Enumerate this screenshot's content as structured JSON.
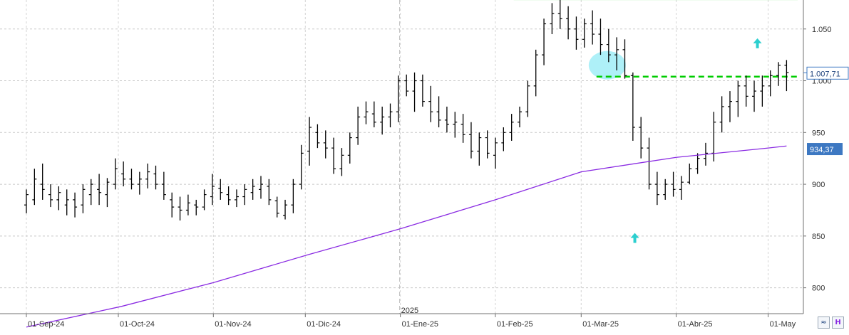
{
  "chart_data": {
    "type": "ohlc",
    "year_marker": "2025",
    "x_labels": [
      "01-Sep-24",
      "01-Oct-24",
      "01-Nov-24",
      "01-Dic-24",
      "01-Ene-25",
      "01-Feb-25",
      "01-Mar-25",
      "01-Abr-25",
      "01-May"
    ],
    "y_ticks": [
      "800",
      "850",
      "900",
      "950",
      "1.000",
      "1.050"
    ],
    "ylim": [
      775,
      1078
    ],
    "grid": true,
    "price_label": "1.007,71",
    "ma_label": "934,37",
    "resistance_level": 1082,
    "support_level": 1004,
    "colors": {
      "bars": "#000000",
      "moving_average": "#8a2be2",
      "ma_label_bg": "#3d78c2",
      "price_label_border": "#3d78c2",
      "support_line": "#00cc00",
      "resistance_zone": "#a8eea8",
      "highlight_circle": "#aef0f8",
      "arrows": "#2ccfcf"
    },
    "series": [
      {
        "type": "ohlc",
        "values": [
          [
            880,
            895,
            872,
            890
          ],
          [
            885,
            915,
            880,
            905
          ],
          [
            900,
            920,
            885,
            895
          ],
          [
            890,
            900,
            878,
            885
          ],
          [
            885,
            898,
            875,
            892
          ],
          [
            880,
            895,
            870,
            885
          ],
          [
            885,
            892,
            868,
            878
          ],
          [
            880,
            900,
            872,
            895
          ],
          [
            890,
            905,
            880,
            900
          ],
          [
            895,
            910,
            880,
            892
          ],
          [
            890,
            906,
            878,
            902
          ],
          [
            900,
            925,
            895,
            915
          ],
          [
            910,
            922,
            898,
            905
          ],
          [
            905,
            915,
            895,
            900
          ],
          [
            900,
            912,
            890,
            905
          ],
          [
            905,
            920,
            896,
            912
          ],
          [
            910,
            918,
            895,
            900
          ],
          [
            900,
            912,
            885,
            890
          ],
          [
            885,
            892,
            868,
            878
          ],
          [
            878,
            888,
            865,
            875
          ],
          [
            875,
            890,
            870,
            882
          ],
          [
            880,
            885,
            870,
            878
          ],
          [
            878,
            895,
            875,
            890
          ],
          [
            888,
            910,
            880,
            898
          ],
          [
            896,
            905,
            885,
            892
          ],
          [
            890,
            898,
            880,
            885
          ],
          [
            885,
            895,
            878,
            888
          ],
          [
            888,
            900,
            880,
            895
          ],
          [
            892,
            905,
            885,
            898
          ],
          [
            895,
            908,
            886,
            900
          ],
          [
            898,
            905,
            880,
            885
          ],
          [
            884,
            888,
            868,
            872
          ],
          [
            870,
            885,
            866,
            880
          ],
          [
            880,
            905,
            872,
            900
          ],
          [
            900,
            938,
            895,
            930
          ],
          [
            932,
            965,
            918,
            955
          ],
          [
            950,
            958,
            935,
            940
          ],
          [
            940,
            952,
            925,
            935
          ],
          [
            935,
            945,
            910,
            915
          ],
          [
            915,
            935,
            908,
            928
          ],
          [
            928,
            950,
            920,
            945
          ],
          [
            945,
            975,
            938,
            965
          ],
          [
            965,
            980,
            958,
            970
          ],
          [
            968,
            980,
            955,
            960
          ],
          [
            960,
            975,
            948,
            965
          ],
          [
            965,
            978,
            955,
            970
          ],
          [
            970,
            1005,
            960,
            1000
          ],
          [
            1000,
            1006,
            985,
            990
          ],
          [
            990,
            1008,
            970,
            1000
          ],
          [
            1000,
            1006,
            975,
            980
          ],
          [
            980,
            995,
            960,
            970
          ],
          [
            970,
            985,
            955,
            962
          ],
          [
            962,
            975,
            950,
            958
          ],
          [
            958,
            970,
            945,
            960
          ],
          [
            958,
            968,
            940,
            948
          ],
          [
            948,
            960,
            925,
            932
          ],
          [
            932,
            950,
            918,
            945
          ],
          [
            945,
            952,
            925,
            930
          ],
          [
            928,
            945,
            915,
            940
          ],
          [
            940,
            955,
            932,
            950
          ],
          [
            950,
            968,
            942,
            960
          ],
          [
            960,
            975,
            955,
            970
          ],
          [
            970,
            1000,
            965,
            995
          ],
          [
            995,
            1030,
            985,
            1025
          ],
          [
            1025,
            1060,
            1015,
            1055
          ],
          [
            1055,
            1075,
            1045,
            1065
          ],
          [
            1065,
            1078,
            1050,
            1060
          ],
          [
            1060,
            1072,
            1040,
            1050
          ],
          [
            1050,
            1062,
            1030,
            1040
          ],
          [
            1040,
            1060,
            1032,
            1055
          ],
          [
            1055,
            1068,
            1035,
            1045
          ],
          [
            1045,
            1060,
            1025,
            1035
          ],
          [
            1035,
            1050,
            1018,
            1025
          ],
          [
            1025,
            1042,
            1010,
            1030
          ],
          [
            1030,
            1040,
            1002,
            1005
          ],
          [
            1005,
            1008,
            942,
            955
          ],
          [
            955,
            965,
            925,
            935
          ],
          [
            935,
            945,
            895,
            900
          ],
          [
            900,
            912,
            880,
            890
          ],
          [
            890,
            905,
            885,
            900
          ],
          [
            900,
            912,
            888,
            895
          ],
          [
            895,
            908,
            885,
            902
          ],
          [
            902,
            920,
            900,
            915
          ],
          [
            915,
            930,
            910,
            925
          ],
          [
            925,
            940,
            918,
            930
          ],
          [
            930,
            970,
            922,
            960
          ],
          [
            960,
            985,
            950,
            975
          ],
          [
            975,
            990,
            960,
            980
          ],
          [
            980,
            1000,
            965,
            995
          ],
          [
            995,
            1005,
            975,
            985
          ],
          [
            985,
            1000,
            970,
            990
          ],
          [
            990,
            1005,
            975,
            995
          ],
          [
            995,
            1010,
            985,
            1005
          ],
          [
            1005,
            1018,
            995,
            1015
          ],
          [
            1015,
            1020,
            990,
            1008
          ]
        ]
      },
      {
        "name": "",
        "type": "line",
        "x_days": [
          0,
          31,
          61,
          92,
          122,
          153,
          181,
          212,
          242,
          248
        ],
        "values": [
          762,
          782,
          805,
          832,
          857,
          885,
          912,
          926,
          935,
          937
        ]
      }
    ]
  }
}
